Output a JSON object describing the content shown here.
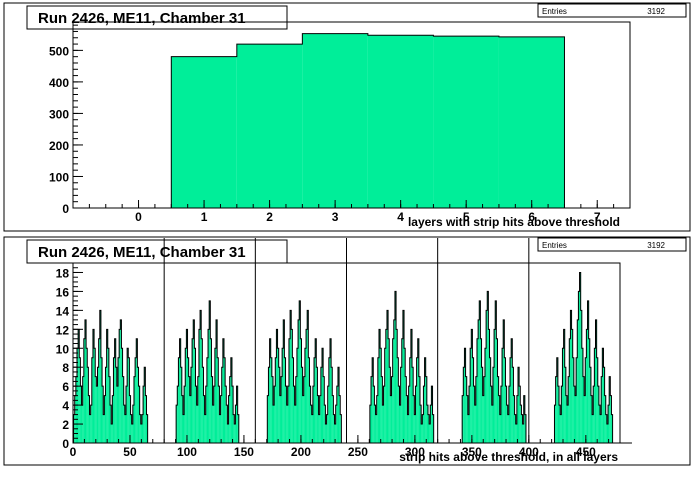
{
  "chart_data": [
    {
      "type": "bar",
      "title": "Run 2426, ME11, Chamber 31",
      "stats": {
        "label": "Entries",
        "value": "3192"
      },
      "xlabel": "layers with strip hits above threshold",
      "xlim": [
        -1,
        7.5
      ],
      "ylim": [
        0,
        590
      ],
      "xticks": [
        "0",
        "1",
        "2",
        "3",
        "4",
        "5",
        "6",
        "7"
      ],
      "yticks": [
        "0",
        "100",
        "200",
        "300",
        "400",
        "500"
      ],
      "x": [
        1,
        2,
        3,
        4,
        5,
        6
      ],
      "values": [
        480,
        520,
        553,
        548,
        545,
        543
      ],
      "fill_color": "#00ee99",
      "frame_color": "#000000"
    },
    {
      "type": "bar",
      "title": "Run 2426, ME11, Chamber 31",
      "stats": {
        "label": "Entries",
        "value": "3192"
      },
      "xlabel": "strip hits above threshold, in all layers",
      "xlim": [
        0,
        480
      ],
      "ylim": [
        0,
        19
      ],
      "xticks": [
        "0",
        "50",
        "100",
        "150",
        "200",
        "250",
        "300",
        "350",
        "400",
        "450"
      ],
      "yticks": [
        "0",
        "2",
        "4",
        "6",
        "8",
        "10",
        "12",
        "14",
        "16",
        "18"
      ],
      "layer_boundaries": [
        80,
        160,
        240,
        320,
        400
      ],
      "bin_width": 1,
      "x_start": 1,
      "values": [
        3,
        5,
        7,
        10,
        12,
        9,
        6,
        4,
        7,
        11,
        13,
        10,
        8,
        5,
        3,
        4,
        9,
        12,
        10,
        7,
        6,
        8,
        11,
        14,
        9,
        6,
        3,
        5,
        8,
        12,
        10,
        7,
        4,
        2,
        5,
        9,
        11,
        8,
        6,
        9,
        12,
        13,
        10,
        7,
        4,
        3,
        6,
        10,
        9,
        5,
        3,
        2,
        4,
        7,
        9,
        11,
        8,
        6,
        3,
        2,
        3,
        6,
        8,
        5,
        3,
        0,
        0,
        0,
        0,
        0,
        0,
        0,
        0,
        0,
        0,
        0,
        0,
        0,
        0,
        0,
        0,
        0,
        0,
        0,
        0,
        0,
        0,
        0,
        0,
        0,
        4,
        6,
        9,
        11,
        8,
        5,
        3,
        6,
        10,
        12,
        9,
        7,
        5,
        8,
        11,
        13,
        10,
        6,
        4,
        7,
        12,
        14,
        11,
        8,
        5,
        3,
        6,
        9,
        12,
        15,
        11,
        7,
        4,
        6,
        10,
        13,
        9,
        6,
        3,
        5,
        8,
        11,
        9,
        6,
        4,
        2,
        5,
        7,
        9,
        6,
        3,
        2,
        4,
        6,
        3,
        0,
        0,
        0,
        0,
        0,
        0,
        0,
        0,
        0,
        0,
        0,
        0,
        0,
        0,
        0,
        0,
        0,
        0,
        0,
        0,
        0,
        0,
        0,
        0,
        0,
        5,
        8,
        11,
        9,
        7,
        4,
        6,
        9,
        12,
        10,
        8,
        5,
        7,
        10,
        13,
        9,
        6,
        4,
        6,
        11,
        14,
        12,
        9,
        6,
        4,
        7,
        10,
        13,
        15,
        11,
        8,
        5,
        7,
        10,
        12,
        14,
        9,
        6,
        4,
        3,
        6,
        9,
        11,
        8,
        5,
        3,
        5,
        8,
        10,
        7,
        4,
        2,
        3,
        6,
        9,
        11,
        8,
        5,
        3,
        2,
        4,
        6,
        8,
        5,
        3,
        0,
        0,
        0,
        0,
        0,
        0,
        0,
        0,
        0,
        0,
        0,
        0,
        0,
        0,
        0,
        0,
        0,
        0,
        0,
        0,
        0,
        0,
        0,
        0,
        0,
        4,
        7,
        9,
        6,
        4,
        3,
        5,
        9,
        12,
        10,
        7,
        4,
        6,
        10,
        12,
        14,
        11,
        8,
        5,
        7,
        11,
        13,
        16,
        12,
        9,
        6,
        4,
        8,
        11,
        14,
        10,
        7,
        5,
        3,
        6,
        9,
        12,
        8,
        5,
        3,
        6,
        9,
        11,
        7,
        4,
        2,
        3,
        6,
        9,
        7,
        4,
        3,
        2,
        4,
        6,
        3,
        0,
        0,
        0,
        0,
        0,
        0,
        0,
        0,
        0,
        0,
        0,
        0,
        0,
        0,
        0,
        0,
        0,
        0,
        0,
        0,
        0,
        0,
        0,
        0,
        0,
        5,
        8,
        10,
        7,
        5,
        3,
        6,
        10,
        12,
        9,
        6,
        4,
        7,
        11,
        13,
        15,
        11,
        8,
        5,
        7,
        10,
        14,
        16,
        12,
        9,
        6,
        4,
        8,
        12,
        15,
        11,
        7,
        5,
        3,
        6,
        10,
        13,
        9,
        6,
        4,
        3,
        6,
        9,
        11,
        8,
        5,
        3,
        2,
        5,
        8,
        6,
        4,
        3,
        2,
        5,
        3,
        0,
        0,
        0,
        0,
        0,
        0,
        0,
        0,
        0,
        0,
        0,
        0,
        0,
        0,
        0,
        0,
        0,
        0,
        0,
        0,
        0,
        0,
        0,
        0,
        0,
        4,
        7,
        9,
        6,
        4,
        3,
        6,
        10,
        12,
        8,
        5,
        4,
        7,
        11,
        14,
        12,
        9,
        6,
        5,
        9,
        13,
        16,
        18,
        14,
        10,
        7,
        5,
        9,
        12,
        15,
        11,
        8,
        5,
        3,
        6,
        10,
        13,
        9,
        6,
        4,
        3,
        7,
        10,
        8,
        5,
        3,
        2,
        4,
        7,
        5,
        3,
        0,
        0,
        0,
        0,
        0,
        0,
        0,
        0,
        0,
        0,
        0,
        0,
        0,
        0,
        0,
        0,
        0
      ],
      "fill_color": "#00ee99",
      "frame_color": "#000000"
    }
  ]
}
